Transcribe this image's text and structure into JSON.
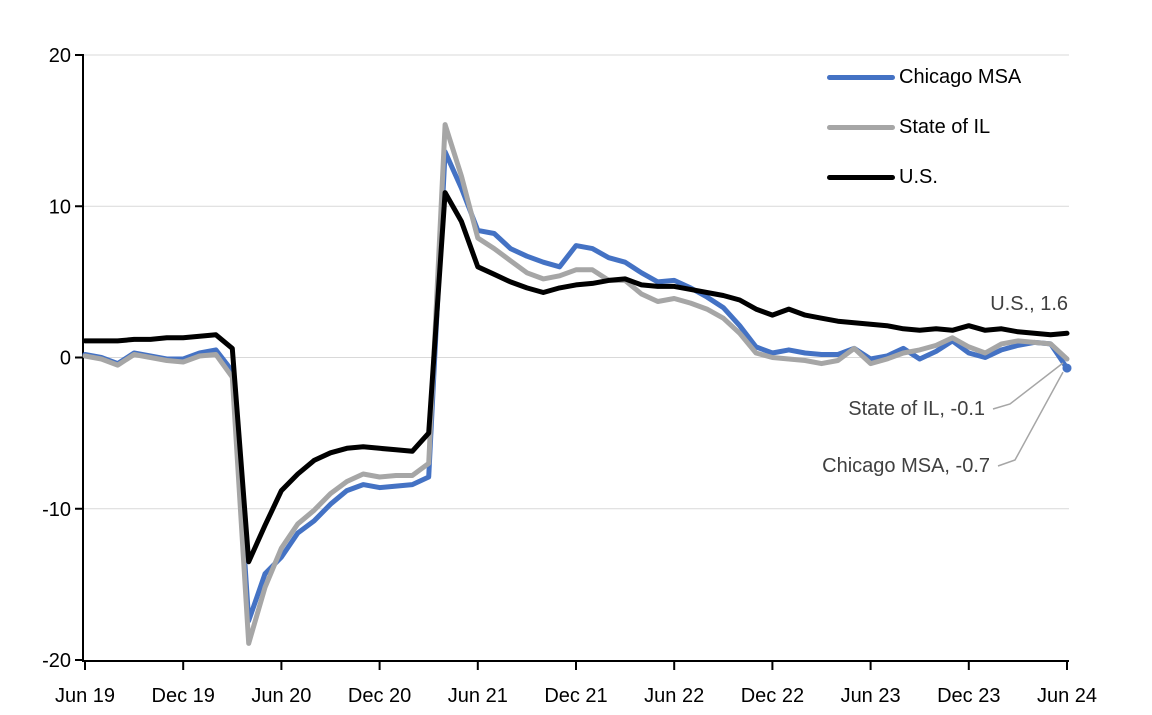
{
  "chart_data": {
    "type": "line",
    "title": "",
    "grid": "horizontal",
    "legend_position": "top-right",
    "ylim": [
      -20,
      20
    ],
    "yticks": [
      20,
      10,
      0,
      -10,
      -20
    ],
    "xtick_every": 6,
    "xtick_labels": [
      "Jun 19",
      "Dec 19",
      "Jun 20",
      "Dec 20",
      "Jun 21",
      "Dec 21",
      "Jun 22",
      "Dec 22",
      "Jun 23",
      "Dec 23",
      "Jun 24"
    ],
    "x": [
      "Jun 19",
      "Jul 19",
      "Aug 19",
      "Sep 19",
      "Oct 19",
      "Nov 19",
      "Dec 19",
      "Jan 20",
      "Feb 20",
      "Mar 20",
      "Apr 20",
      "May 20",
      "Jun 20",
      "Jul 20",
      "Aug 20",
      "Sep 20",
      "Oct 20",
      "Nov 20",
      "Dec 20",
      "Jan 21",
      "Feb 21",
      "Mar 21",
      "Apr 21",
      "May 21",
      "Jun 21",
      "Jul 21",
      "Aug 21",
      "Sep 21",
      "Oct 21",
      "Nov 21",
      "Dec 21",
      "Jan 22",
      "Feb 22",
      "Mar 22",
      "Apr 22",
      "May 22",
      "Jun 22",
      "Jul 22",
      "Aug 22",
      "Sep 22",
      "Oct 22",
      "Nov 22",
      "Dec 22",
      "Jan 23",
      "Feb 23",
      "Mar 23",
      "Apr 23",
      "May 23",
      "Jun 23",
      "Jul 23",
      "Aug 23",
      "Sep 23",
      "Oct 23",
      "Nov 23",
      "Dec 23",
      "Jan 24",
      "Feb 24",
      "Mar 24",
      "Apr 24",
      "May 24",
      "Jun 24"
    ],
    "series": [
      {
        "name": "Chicago MSA",
        "color": "#4472C4",
        "values": [
          0.2,
          0.0,
          -0.4,
          0.3,
          0.1,
          -0.1,
          -0.1,
          0.3,
          0.5,
          -0.9,
          -17.4,
          -14.3,
          -13.2,
          -11.6,
          -10.8,
          -9.7,
          -8.8,
          -8.4,
          -8.6,
          -8.5,
          -8.4,
          -7.9,
          13.6,
          11.2,
          8.4,
          8.2,
          7.2,
          6.7,
          6.3,
          6.0,
          7.4,
          7.2,
          6.6,
          6.3,
          5.6,
          5.0,
          5.1,
          4.6,
          4.0,
          3.3,
          2.1,
          0.7,
          0.3,
          0.5,
          0.3,
          0.2,
          0.2,
          0.6,
          -0.1,
          0.1,
          0.6,
          -0.1,
          0.4,
          1.1,
          0.3,
          0.0,
          0.5,
          0.8,
          1.0,
          0.9,
          -0.7
        ]
      },
      {
        "name": "State of IL",
        "color": "#A6A6A6",
        "values": [
          0.1,
          -0.1,
          -0.5,
          0.2,
          0.0,
          -0.2,
          -0.3,
          0.1,
          0.2,
          -1.3,
          -18.9,
          -15.2,
          -12.6,
          -11.0,
          -10.1,
          -9.0,
          -8.2,
          -7.7,
          -7.9,
          -7.8,
          -7.8,
          -7.0,
          15.4,
          12.0,
          7.9,
          7.2,
          6.4,
          5.6,
          5.2,
          5.4,
          5.8,
          5.8,
          5.1,
          5.1,
          4.2,
          3.7,
          3.9,
          3.6,
          3.2,
          2.6,
          1.6,
          0.3,
          0.0,
          -0.1,
          -0.2,
          -0.4,
          -0.2,
          0.6,
          -0.4,
          -0.1,
          0.3,
          0.5,
          0.8,
          1.3,
          0.7,
          0.3,
          0.9,
          1.1,
          1.0,
          0.9,
          -0.1
        ]
      },
      {
        "name": "U.S.",
        "color": "#000000",
        "values": [
          1.1,
          1.1,
          1.1,
          1.2,
          1.2,
          1.3,
          1.3,
          1.4,
          1.5,
          0.6,
          -13.5,
          -11.1,
          -8.8,
          -7.7,
          -6.8,
          -6.3,
          -6.0,
          -5.9,
          -6.0,
          -6.1,
          -6.2,
          -5.0,
          10.9,
          9.0,
          6.0,
          5.5,
          5.0,
          4.6,
          4.3,
          4.6,
          4.8,
          4.9,
          5.1,
          5.2,
          4.8,
          4.7,
          4.7,
          4.5,
          4.3,
          4.1,
          3.8,
          3.2,
          2.8,
          3.2,
          2.8,
          2.6,
          2.4,
          2.3,
          2.2,
          2.1,
          1.9,
          1.8,
          1.9,
          1.8,
          2.1,
          1.8,
          1.9,
          1.7,
          1.6,
          1.5,
          1.6
        ]
      }
    ],
    "annotations": [
      {
        "text": "U.S., 1.6",
        "target_series": "U.S.",
        "has_leader": false
      },
      {
        "text": "State of IL, -0.1",
        "target_series": "State of IL",
        "has_leader": true
      },
      {
        "text": "Chicago MSA, -0.7",
        "target_series": "Chicago MSA",
        "has_leader": true
      }
    ],
    "end_marker": {
      "series": "Chicago MSA",
      "color": "#4472C4"
    },
    "colors": {
      "grid": "#D9D9D9",
      "axis": "#000000",
      "tick_label": "#000000",
      "annotation_text": "#404040",
      "leader_line": "#A6A6A6"
    }
  },
  "legend": {
    "items": [
      {
        "label": "Chicago MSA"
      },
      {
        "label": "State of IL"
      },
      {
        "label": "U.S."
      }
    ]
  }
}
